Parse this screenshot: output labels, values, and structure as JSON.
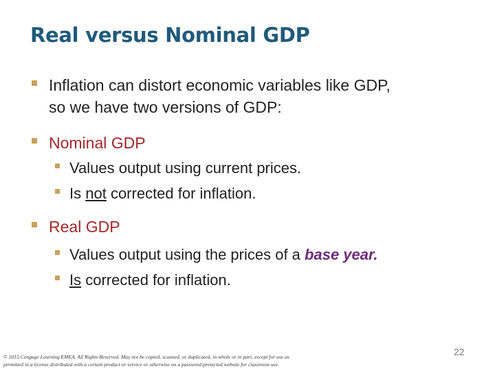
{
  "title": "Real versus Nominal GDP",
  "intro": {
    "line1": "Inflation can distort economic variables like GDP,",
    "line2": "so we have two versions of GDP:"
  },
  "nominal": {
    "heading": "Nominal GDP",
    "point1": "Values output using current prices.",
    "point2_pre": "Is ",
    "point2_emph": "not",
    "point2_post": " corrected for inflation."
  },
  "real": {
    "heading": "Real GDP",
    "point1_pre": "Values output using the prices of a ",
    "point1_emph": "base year.",
    "point2_emph": "Is",
    "point2_post": " corrected for inflation."
  },
  "footer": {
    "line1": "© 2015 Cengage Learning EMEA. All Rights Reserved. May not be copied, scanned, or duplicated, in whole or in part, except for use as",
    "line2": "permitted in a license distributed with a certain product or service or otherwise on a password-protected website for classroom use."
  },
  "page_number": "22",
  "colors": {
    "title": "#1f5a7a",
    "bullet": "#c9a15c",
    "heading_red": "#a3282b",
    "emphasis_purple": "#6b2c78"
  }
}
